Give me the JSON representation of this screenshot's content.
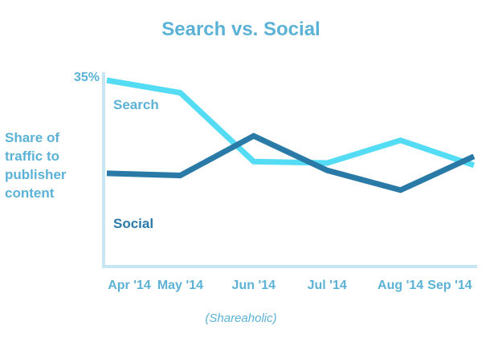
{
  "chart_data": {
    "type": "line",
    "title": "Search vs. Social",
    "ylabel_lines": [
      "Share of",
      "traffic to",
      "publisher",
      "content"
    ],
    "y_tick_label": "35%",
    "y_tick_value": 35,
    "ylim": [
      10,
      35
    ],
    "categories": [
      "Apr '14",
      "May '14",
      "Jun '14",
      "Jul '14",
      "Aug '14",
      "Sep '14"
    ],
    "series": [
      {
        "name": "Search",
        "color": "#55dcf5",
        "values": [
          35,
          33.3,
          23.9,
          23.7,
          26.8,
          23.4
        ]
      },
      {
        "name": "Social",
        "color": "#2a7aa8",
        "values": [
          22.3,
          22,
          27.4,
          22.7,
          20,
          24.6
        ]
      }
    ],
    "source": "(Shareaholic)",
    "grid": false,
    "axis_color": "#c7e6f4"
  }
}
